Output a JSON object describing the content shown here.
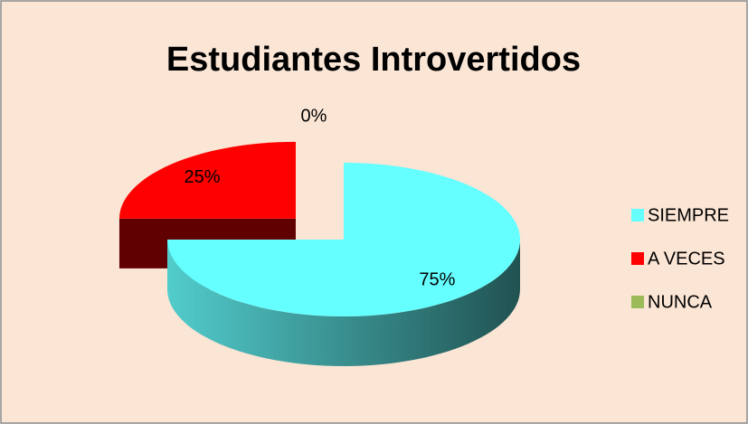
{
  "chart_data": {
    "type": "pie",
    "title": "Estudiantes Introvertidos",
    "categories": [
      "SIEMPRE",
      "A VECES",
      "NUNCA"
    ],
    "values": [
      75,
      25,
      0
    ],
    "value_labels": [
      "75%",
      "25%",
      "0%"
    ],
    "colors": [
      "#66FFFF",
      "#FF0000",
      "#9BBB59"
    ],
    "legend": "right"
  }
}
